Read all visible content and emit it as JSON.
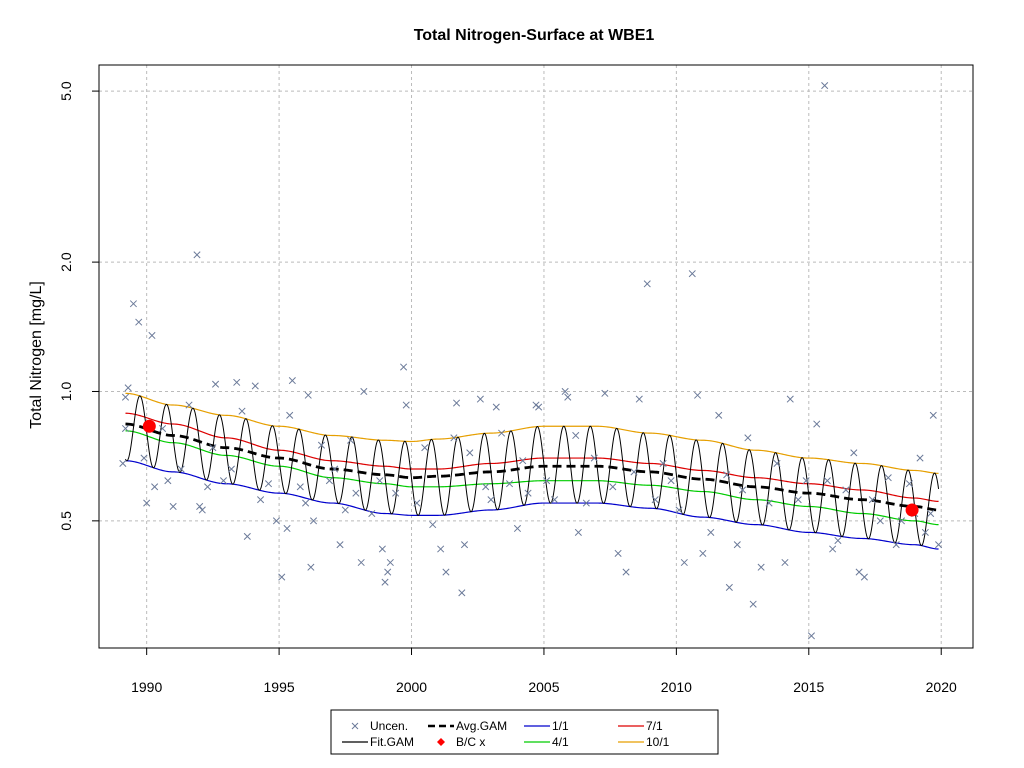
{
  "chart_data": {
    "type": "scatter",
    "title": "Total Nitrogen-Surface at WBE1",
    "xlabel": "",
    "ylabel": "Total Nitrogen [mg/L]",
    "y_scale": "log",
    "xlim": [
      1988.2,
      2021.2
    ],
    "ylim": [
      0.253,
      5.75
    ],
    "x_ticks": [
      1990,
      1995,
      2000,
      2005,
      2010,
      2015,
      2020
    ],
    "y_ticks": [
      0.5,
      1.0,
      2.0,
      5.0
    ],
    "y_tick_labels": [
      "0.5",
      "1.0",
      "2.0",
      "5.0"
    ],
    "grid": true,
    "colors": {
      "points": "#6b7a99",
      "fit": "#000000",
      "avg": "#000000",
      "bc": "#ff0000",
      "jan": "#0000cc",
      "apr": "#00cc00",
      "jul": "#dd0000",
      "oct": "#e69f00",
      "grid": "#bbbbbb"
    },
    "legend": {
      "position": "bottom-center",
      "entries": [
        {
          "label": "Uncen.",
          "symbol": "x",
          "color": "#6b7a99"
        },
        {
          "label": "Avg.GAM",
          "symbol": "dashed",
          "color": "#000000"
        },
        {
          "label": "1/1",
          "symbol": "line",
          "color": "#0000cc"
        },
        {
          "label": "7/1",
          "symbol": "line",
          "color": "#dd0000"
        },
        {
          "label": "Fit.GAM",
          "symbol": "line",
          "color": "#000000"
        },
        {
          "label": "B/C x",
          "symbol": "diamond",
          "color": "#ff0000"
        },
        {
          "label": "4/1",
          "symbol": "line",
          "color": "#00cc00"
        },
        {
          "label": "10/1",
          "symbol": "line",
          "color": "#e69f00"
        }
      ]
    },
    "baseline_current": [
      {
        "x": 1990.1,
        "y": 0.83
      },
      {
        "x": 2018.9,
        "y": 0.53
      }
    ],
    "seasonal_curves": {
      "x": [
        1989.2,
        1991,
        1993,
        1995,
        1997,
        1999,
        2000,
        2001,
        2003,
        2005,
        2007,
        2009,
        2011,
        2013,
        2015,
        2017,
        2019,
        2019.9
      ],
      "jan": [
        0.69,
        0.65,
        0.61,
        0.58,
        0.55,
        0.52,
        0.515,
        0.515,
        0.53,
        0.55,
        0.55,
        0.535,
        0.51,
        0.49,
        0.47,
        0.455,
        0.44,
        0.43
      ],
      "apr": [
        0.81,
        0.76,
        0.71,
        0.67,
        0.63,
        0.61,
        0.6,
        0.6,
        0.61,
        0.62,
        0.62,
        0.605,
        0.585,
        0.56,
        0.54,
        0.52,
        0.5,
        0.49
      ],
      "jul": [
        0.89,
        0.84,
        0.78,
        0.73,
        0.69,
        0.67,
        0.66,
        0.66,
        0.68,
        0.7,
        0.7,
        0.68,
        0.655,
        0.63,
        0.61,
        0.59,
        0.565,
        0.555
      ],
      "oct": [
        0.99,
        0.93,
        0.88,
        0.83,
        0.79,
        0.77,
        0.765,
        0.775,
        0.8,
        0.83,
        0.83,
        0.8,
        0.77,
        0.73,
        0.7,
        0.68,
        0.655,
        0.645
      ],
      "avg": [
        0.84,
        0.79,
        0.74,
        0.7,
        0.66,
        0.64,
        0.63,
        0.635,
        0.65,
        0.67,
        0.67,
        0.65,
        0.625,
        0.6,
        0.58,
        0.56,
        0.54,
        0.53
      ]
    },
    "observations": [
      {
        "x": 1989.1,
        "y": 0.68
      },
      {
        "x": 1989.2,
        "y": 0.82
      },
      {
        "x": 1989.2,
        "y": 0.97
      },
      {
        "x": 1989.3,
        "y": 1.02
      },
      {
        "x": 1989.5,
        "y": 1.6
      },
      {
        "x": 1989.7,
        "y": 1.45
      },
      {
        "x": 1989.9,
        "y": 0.7
      },
      {
        "x": 1990.0,
        "y": 0.55
      },
      {
        "x": 1990.2,
        "y": 1.35
      },
      {
        "x": 1990.3,
        "y": 0.6
      },
      {
        "x": 1990.6,
        "y": 0.82
      },
      {
        "x": 1990.8,
        "y": 0.62
      },
      {
        "x": 1991.0,
        "y": 0.54
      },
      {
        "x": 1991.3,
        "y": 0.66
      },
      {
        "x": 1991.6,
        "y": 0.93
      },
      {
        "x": 1991.9,
        "y": 2.08
      },
      {
        "x": 1992.0,
        "y": 0.54
      },
      {
        "x": 1992.1,
        "y": 0.53
      },
      {
        "x": 1992.3,
        "y": 0.6
      },
      {
        "x": 1992.5,
        "y": 0.74
      },
      {
        "x": 1992.6,
        "y": 1.04
      },
      {
        "x": 1992.9,
        "y": 0.62
      },
      {
        "x": 1993.2,
        "y": 0.66
      },
      {
        "x": 1993.4,
        "y": 1.05
      },
      {
        "x": 1993.6,
        "y": 0.9
      },
      {
        "x": 1993.8,
        "y": 0.46
      },
      {
        "x": 1994.1,
        "y": 1.03
      },
      {
        "x": 1994.3,
        "y": 0.56
      },
      {
        "x": 1994.6,
        "y": 0.61
      },
      {
        "x": 1994.9,
        "y": 0.5
      },
      {
        "x": 1995.1,
        "y": 0.37
      },
      {
        "x": 1995.3,
        "y": 0.48
      },
      {
        "x": 1995.4,
        "y": 0.88
      },
      {
        "x": 1995.5,
        "y": 1.06
      },
      {
        "x": 1995.8,
        "y": 0.6
      },
      {
        "x": 1996.0,
        "y": 0.55
      },
      {
        "x": 1996.1,
        "y": 0.98
      },
      {
        "x": 1996.2,
        "y": 0.39
      },
      {
        "x": 1996.3,
        "y": 0.5
      },
      {
        "x": 1996.6,
        "y": 0.75
      },
      {
        "x": 1996.9,
        "y": 0.62
      },
      {
        "x": 1997.1,
        "y": 0.66
      },
      {
        "x": 1997.3,
        "y": 0.44
      },
      {
        "x": 1997.5,
        "y": 0.53
      },
      {
        "x": 1997.7,
        "y": 0.77
      },
      {
        "x": 1997.9,
        "y": 0.58
      },
      {
        "x": 1998.1,
        "y": 0.4
      },
      {
        "x": 1998.2,
        "y": 1.0
      },
      {
        "x": 1998.5,
        "y": 0.52
      },
      {
        "x": 1998.8,
        "y": 0.62
      },
      {
        "x": 1998.9,
        "y": 0.43
      },
      {
        "x": 1999.0,
        "y": 0.36
      },
      {
        "x": 1999.1,
        "y": 0.38
      },
      {
        "x": 1999.2,
        "y": 0.4
      },
      {
        "x": 1999.4,
        "y": 0.58
      },
      {
        "x": 1999.7,
        "y": 1.14
      },
      {
        "x": 1999.8,
        "y": 0.93
      },
      {
        "x": 2000.2,
        "y": 0.55
      },
      {
        "x": 2000.5,
        "y": 0.74
      },
      {
        "x": 2000.8,
        "y": 0.49
      },
      {
        "x": 2001.1,
        "y": 0.43
      },
      {
        "x": 2001.3,
        "y": 0.38
      },
      {
        "x": 2001.6,
        "y": 0.78
      },
      {
        "x": 2001.7,
        "y": 0.94
      },
      {
        "x": 2001.9,
        "y": 0.34
      },
      {
        "x": 2002.0,
        "y": 0.44
      },
      {
        "x": 2002.2,
        "y": 0.72
      },
      {
        "x": 2002.6,
        "y": 0.96
      },
      {
        "x": 2002.8,
        "y": 0.6
      },
      {
        "x": 2003.0,
        "y": 0.56
      },
      {
        "x": 2003.2,
        "y": 0.92
      },
      {
        "x": 2003.4,
        "y": 0.8
      },
      {
        "x": 2003.7,
        "y": 0.61
      },
      {
        "x": 2004.0,
        "y": 0.48
      },
      {
        "x": 2004.2,
        "y": 0.69
      },
      {
        "x": 2004.4,
        "y": 0.58
      },
      {
        "x": 2004.7,
        "y": 0.93
      },
      {
        "x": 2004.8,
        "y": 0.92
      },
      {
        "x": 2005.1,
        "y": 0.62
      },
      {
        "x": 2005.4,
        "y": 0.56
      },
      {
        "x": 2005.8,
        "y": 1.0
      },
      {
        "x": 2005.9,
        "y": 0.97
      },
      {
        "x": 2006.2,
        "y": 0.79
      },
      {
        "x": 2006.3,
        "y": 0.47
      },
      {
        "x": 2006.6,
        "y": 0.55
      },
      {
        "x": 2006.9,
        "y": 0.7
      },
      {
        "x": 2007.3,
        "y": 0.99
      },
      {
        "x": 2007.6,
        "y": 0.6
      },
      {
        "x": 2007.8,
        "y": 0.42
      },
      {
        "x": 2008.1,
        "y": 0.38
      },
      {
        "x": 2008.4,
        "y": 0.65
      },
      {
        "x": 2008.6,
        "y": 0.96
      },
      {
        "x": 2008.9,
        "y": 1.78
      },
      {
        "x": 2009.2,
        "y": 0.56
      },
      {
        "x": 2009.5,
        "y": 0.68
      },
      {
        "x": 2009.8,
        "y": 0.62
      },
      {
        "x": 2010.1,
        "y": 0.53
      },
      {
        "x": 2010.3,
        "y": 0.4
      },
      {
        "x": 2010.6,
        "y": 1.88
      },
      {
        "x": 2010.8,
        "y": 0.98
      },
      {
        "x": 2011.0,
        "y": 0.42
      },
      {
        "x": 2011.3,
        "y": 0.47
      },
      {
        "x": 2011.6,
        "y": 0.88
      },
      {
        "x": 2011.9,
        "y": 0.64
      },
      {
        "x": 2012.0,
        "y": 0.35
      },
      {
        "x": 2012.3,
        "y": 0.44
      },
      {
        "x": 2012.5,
        "y": 0.59
      },
      {
        "x": 2012.7,
        "y": 0.78
      },
      {
        "x": 2012.9,
        "y": 0.32
      },
      {
        "x": 2013.2,
        "y": 0.39
      },
      {
        "x": 2013.5,
        "y": 0.55
      },
      {
        "x": 2013.8,
        "y": 0.68
      },
      {
        "x": 2014.1,
        "y": 0.4
      },
      {
        "x": 2014.3,
        "y": 0.96
      },
      {
        "x": 2014.6,
        "y": 0.56
      },
      {
        "x": 2014.9,
        "y": 0.62
      },
      {
        "x": 2015.1,
        "y": 0.27
      },
      {
        "x": 2015.3,
        "y": 0.84
      },
      {
        "x": 2015.6,
        "y": 5.15
      },
      {
        "x": 2015.7,
        "y": 0.62
      },
      {
        "x": 2015.9,
        "y": 0.43
      },
      {
        "x": 2016.1,
        "y": 0.45
      },
      {
        "x": 2016.4,
        "y": 0.59
      },
      {
        "x": 2016.7,
        "y": 0.72
      },
      {
        "x": 2016.9,
        "y": 0.38
      },
      {
        "x": 2017.1,
        "y": 0.37
      },
      {
        "x": 2017.4,
        "y": 0.56
      },
      {
        "x": 2017.7,
        "y": 0.5
      },
      {
        "x": 2018.0,
        "y": 0.63
      },
      {
        "x": 2018.3,
        "y": 0.44
      },
      {
        "x": 2018.5,
        "y": 0.5
      },
      {
        "x": 2018.8,
        "y": 0.61
      },
      {
        "x": 2019.0,
        "y": 0.52
      },
      {
        "x": 2019.2,
        "y": 0.7
      },
      {
        "x": 2019.4,
        "y": 0.47
      },
      {
        "x": 2019.6,
        "y": 0.52
      },
      {
        "x": 2019.7,
        "y": 0.88
      },
      {
        "x": 2019.9,
        "y": 0.44
      }
    ]
  }
}
